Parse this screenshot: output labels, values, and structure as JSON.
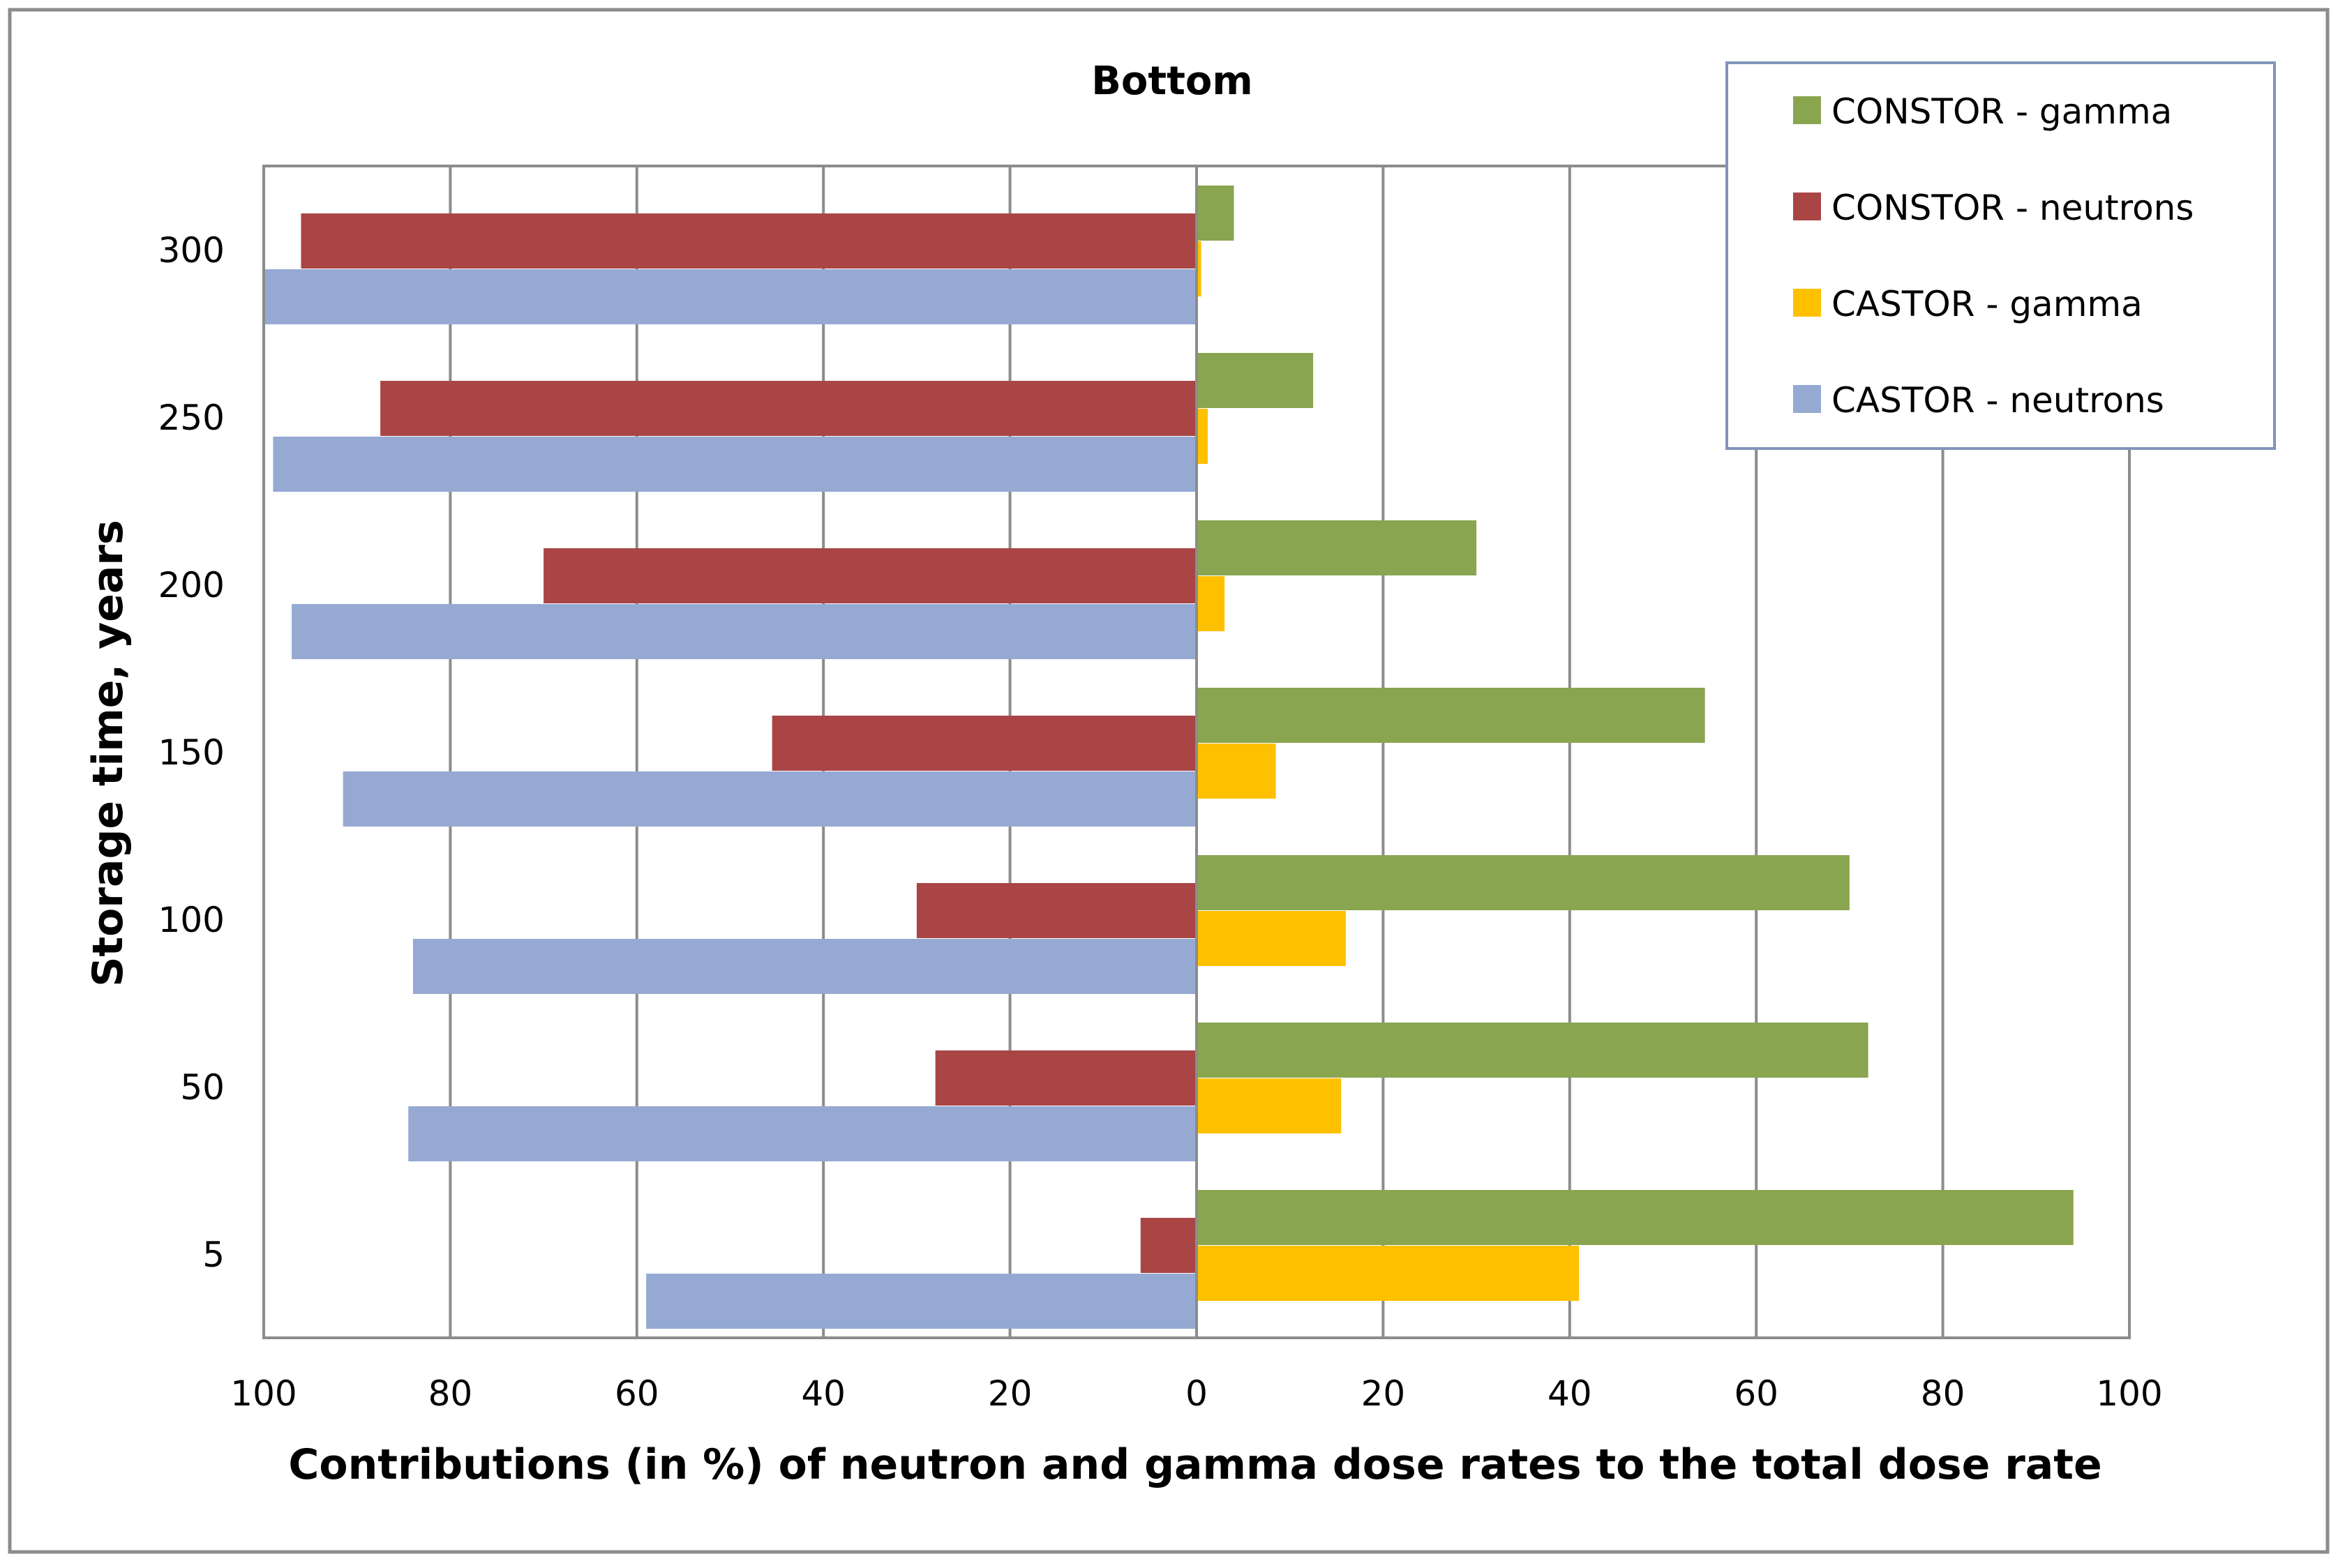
{
  "chart_data": {
    "type": "bar",
    "orientation": "horizontal",
    "title": "Bottom",
    "xlabel": "Contributions (in %) of neutron and gamma dose rates to the total dose rate",
    "ylabel": "Storage time, years",
    "categories": [
      "5",
      "50",
      "100",
      "150",
      "200",
      "250",
      "300"
    ],
    "x_ticks": [
      "100",
      "80",
      "60",
      "40",
      "20",
      "0",
      "20",
      "40",
      "60",
      "80",
      "100"
    ],
    "x_tick_values": [
      -100,
      -80,
      -60,
      -40,
      -20,
      0,
      20,
      40,
      60,
      80,
      100
    ],
    "xlim": [
      -100,
      100
    ],
    "grid": "vertical",
    "legend_position": "top-right",
    "series": [
      {
        "name": "CONSTOR - gamma",
        "color": "#8aa54f",
        "direction": "right",
        "values": [
          94,
          72,
          70,
          54.5,
          30,
          12.5,
          4
        ]
      },
      {
        "name": "CONSTOR - neutrons",
        "color": "#a94545",
        "direction": "left",
        "values": [
          6,
          28,
          30,
          45.5,
          70,
          87.5,
          96
        ]
      },
      {
        "name": "CASTOR - gamma",
        "color": "#ffc000",
        "direction": "right",
        "values": [
          41,
          15.5,
          16,
          8.5,
          3,
          1.2,
          0.5
        ]
      },
      {
        "name": "CASTOR - neutrons",
        "color": "#95a9d3",
        "direction": "left",
        "values": [
          59,
          84.5,
          84,
          91.5,
          97,
          99,
          100
        ]
      }
    ]
  }
}
